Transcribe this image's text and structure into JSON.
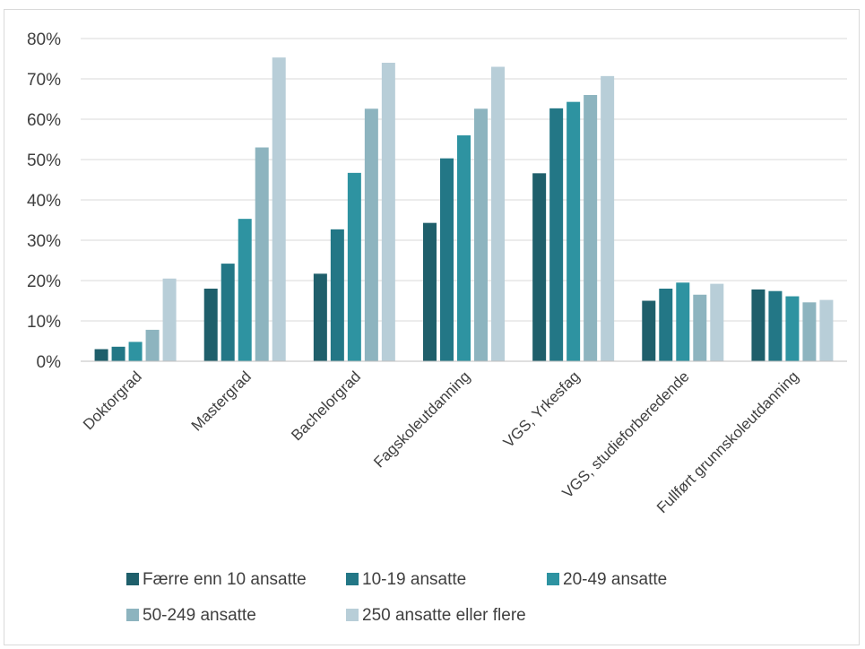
{
  "chart_data": {
    "type": "bar",
    "categories": [
      "Doktorgrad",
      "Mastergrad",
      "Bachelorgrad",
      "Fagskoleutdanning",
      "VGS, Yrkesfag",
      "VGS, studieforberedende",
      "Fullført grunnskoleutdanning"
    ],
    "series": [
      {
        "name": "Færre enn 10 ansatte",
        "color": "#1f5f6b",
        "values": [
          0.03,
          0.18,
          0.217,
          0.343,
          0.466,
          0.15,
          0.178
        ]
      },
      {
        "name": "10-19 ansatte",
        "color": "#237786",
        "values": [
          0.036,
          0.242,
          0.327,
          0.503,
          0.627,
          0.18,
          0.174
        ]
      },
      {
        "name": "20-49 ansatte",
        "color": "#2e93a1",
        "values": [
          0.048,
          0.353,
          0.467,
          0.56,
          0.643,
          0.195,
          0.161
        ]
      },
      {
        "name": "50-249 ansatte",
        "color": "#8db4bf",
        "values": [
          0.078,
          0.53,
          0.626,
          0.626,
          0.66,
          0.165,
          0.146
        ]
      },
      {
        "name": "250 ansatte eller flere",
        "color": "#b8ced8",
        "values": [
          0.205,
          0.753,
          0.74,
          0.73,
          0.707,
          0.192,
          0.152
        ]
      }
    ],
    "ylim": [
      0,
      0.8
    ],
    "yticks": [
      "0%",
      "10%",
      "20%",
      "30%",
      "40%",
      "50%",
      "60%",
      "70%",
      "80%"
    ],
    "grid": true,
    "legend_position": "bottom"
  }
}
